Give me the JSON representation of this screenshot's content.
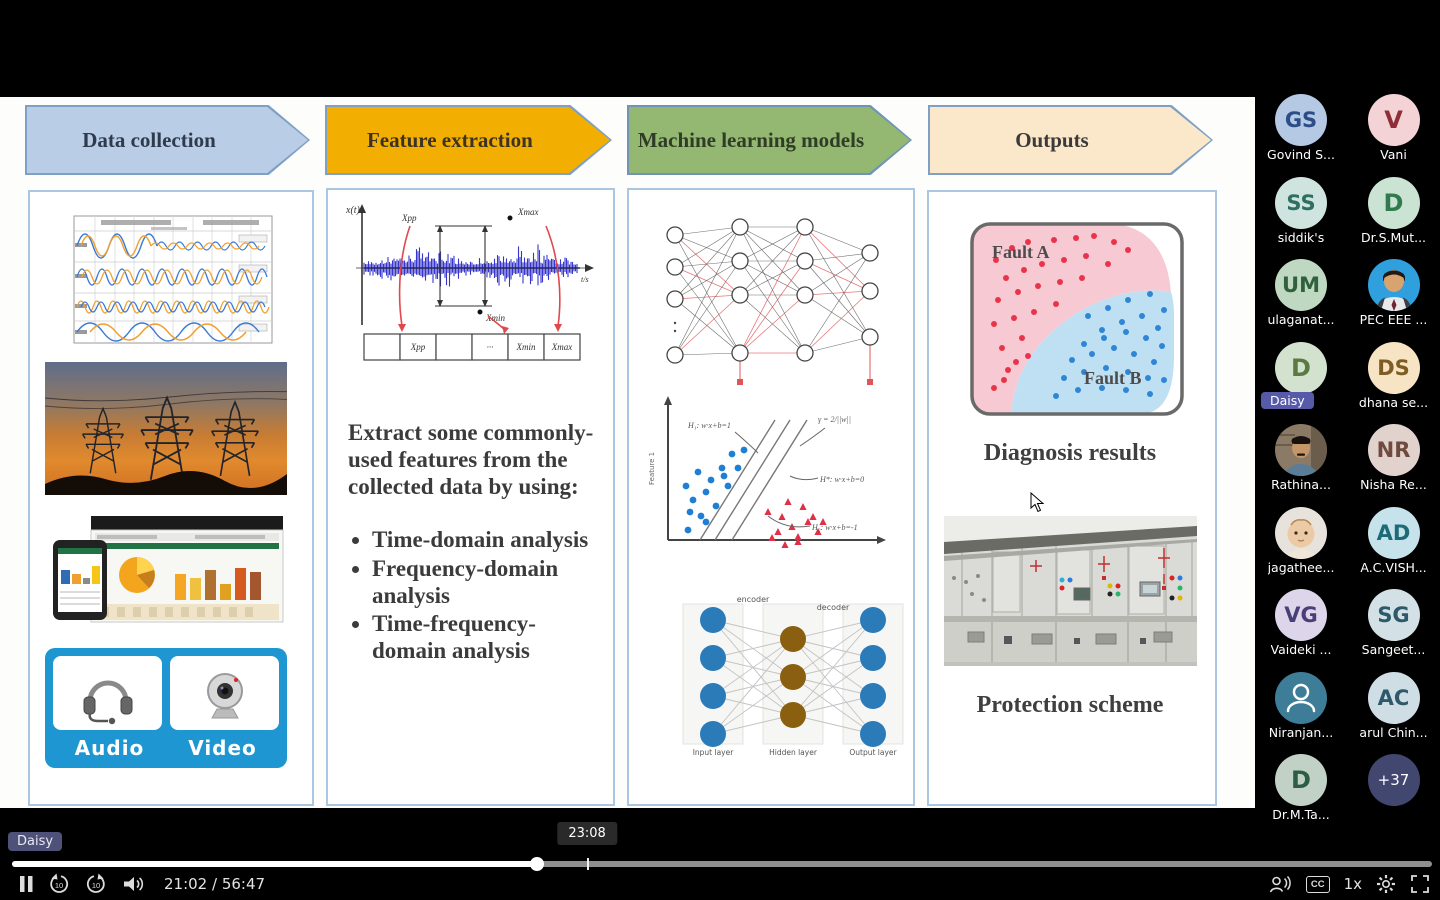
{
  "pipeline": {
    "steps": [
      {
        "label": "Data collection",
        "fill": "#b9cde6",
        "border": "#7da0c4",
        "text": "#2f3b4c"
      },
      {
        "label": "Feature extraction",
        "fill": "#f3ae02",
        "border": "#7da0c4",
        "text": "#3d3324"
      },
      {
        "label": "Machine learning models",
        "fill": "#94b771",
        "border": "#6f94b8",
        "text": "#2f3d27"
      },
      {
        "label": "Outputs",
        "fill": "#fbe7c9",
        "border": "#7da0c4",
        "text": "#3a3a3a"
      }
    ]
  },
  "columns": {
    "data_collection": {
      "audio": "Audio",
      "video": "Video"
    },
    "feature_extraction": {
      "signal_axis_y": "x(t)",
      "signal_axis_x": "t/s",
      "cells": [
        "",
        "Xpp",
        "",
        "···",
        "Xmin",
        "Xmax"
      ],
      "annotations": {
        "xpp": "Xpp",
        "xmax": "Xmax",
        "xmin": "Xmin"
      },
      "intro": "Extract some commonly-used features from the collected data by using:",
      "bullets": [
        "Time-domain analysis",
        "Frequency-domain analysis",
        "Time-frequency-domain analysis"
      ]
    },
    "ml_models": {
      "svm_labels": {
        "h1": "H₁: w·x+b=1",
        "gamma": "γ = 2/||w||",
        "hstar": "H*: w·x+b=0",
        "h2": "H₂: w·x+b=-1",
        "ylabel": "Feature 1"
      },
      "autoencoder": {
        "encoder": "encoder",
        "decoder": "decoder",
        "layers": [
          "Input layer",
          "Hidden layer",
          "Output layer"
        ]
      }
    },
    "outputs": {
      "fault_a": "Fault A",
      "fault_b": "Fault B",
      "caption1": "Diagnosis results",
      "caption2": "Protection scheme"
    }
  },
  "participants": [
    {
      "type": "initials",
      "initials": "GS",
      "name": "Govind S...",
      "bg": "#b5c8e4",
      "fg": "#2c4e87"
    },
    {
      "type": "initials",
      "initials": "V",
      "name": "Vani",
      "bg": "#f4d3d6",
      "fg": "#8e2f38"
    },
    {
      "type": "initials",
      "initials": "SS",
      "name": "siddik's",
      "bg": "#cfe4de",
      "fg": "#2f6e62"
    },
    {
      "type": "initials",
      "initials": "D",
      "name": "Dr.S.Mut...",
      "bg": "#cbe3d3",
      "fg": "#317a4e"
    },
    {
      "type": "initials",
      "initials": "UM",
      "name": "ulaganat...",
      "bg": "#bfd8c2",
      "fg": "#31603c"
    },
    {
      "type": "photo",
      "photo": "man-blue",
      "name": "PEC EEE ..."
    },
    {
      "type": "initials",
      "initials": "D",
      "name": "Daisy",
      "bg": "#d3e2cf",
      "fg": "#5a7a3f",
      "badge": "Daisy",
      "badge_bg": "#575aa8"
    },
    {
      "type": "initials",
      "initials": "DS",
      "name": "dhana se...",
      "bg": "#f6e4c4",
      "fg": "#7d5d23"
    },
    {
      "type": "photo",
      "photo": "man-indoor",
      "name": "Rathina..."
    },
    {
      "type": "initials",
      "initials": "NR",
      "name": "Nisha Re...",
      "bg": "#e2d2cd",
      "fg": "#6f4a3e"
    },
    {
      "type": "photo",
      "photo": "baby",
      "name": "jagathee..."
    },
    {
      "type": "initials",
      "initials": "AD",
      "name": "A.C.VISH...",
      "bg": "#c6e2ea",
      "fg": "#1d6b77"
    },
    {
      "type": "initials",
      "initials": "VG",
      "name": "Vaideki ...",
      "bg": "#ddd6eb",
      "fg": "#493f78"
    },
    {
      "type": "initials",
      "initials": "SG",
      "name": "Sangeet...",
      "bg": "#d3e1e7",
      "fg": "#2e596b"
    },
    {
      "type": "icon",
      "icon": "person",
      "name": "Niranjan...",
      "bg": "#3e7d98"
    },
    {
      "type": "initials",
      "initials": "AC",
      "name": "arul Chin...",
      "bg": "#cfdde5",
      "fg": "#2e596b"
    },
    {
      "type": "initials",
      "initials": "D",
      "name": "Dr.M.Ta...",
      "bg": "#c2d1c5",
      "fg": "#2e5d45"
    },
    {
      "type": "more",
      "label": "+37",
      "bg": "#41476e",
      "fg": "#ffffff"
    }
  ],
  "player": {
    "presenter": "Daisy",
    "current": "21:02",
    "duration": "56:47",
    "time_display": "21:02 / 56:47",
    "tooltip": "23:08",
    "speed": "1x",
    "cc": "CC",
    "progress_pct": 37.0,
    "hover_pct": 40.5
  }
}
